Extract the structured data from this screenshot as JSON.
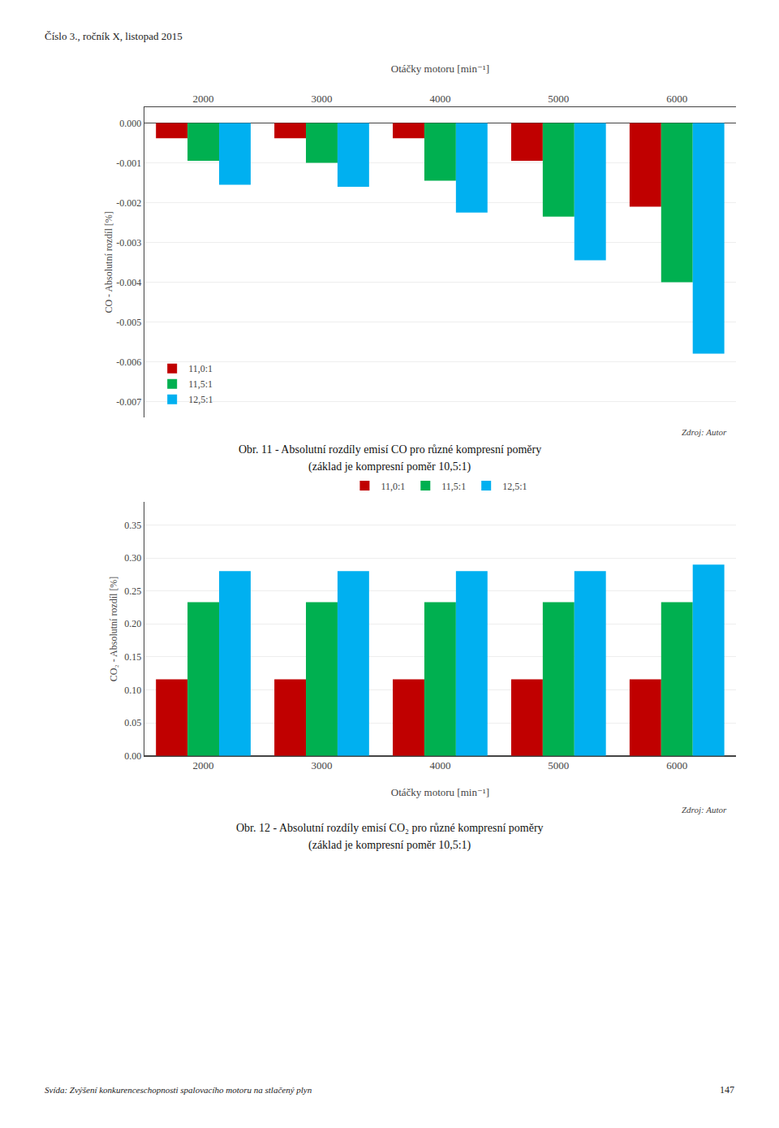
{
  "header": "Číslo 3., ročník X, listopad 2015",
  "footer": "Svída: Zvýšení konkurenceschopnosti spalovacího motoru na stlačený plyn",
  "page": 147,
  "chart_data": [
    {
      "type": "bar",
      "title": "Obr. 11 - Absolutní rozdíly emisí CO pro různé kompresní poměry",
      "subtitle": "(základ je kompresní poměr 10,5:1)",
      "annotations": [
        "Zdroj: Autor"
      ],
      "xlabel": "Otáčky motoru [min⁻¹]",
      "ylabel": "CO - Absolutní rozdíl [%]",
      "categories": [
        "2000",
        "3000",
        "4000",
        "5000",
        "6000"
      ],
      "series": [
        {
          "name": "11,0:1",
          "color": "#c00000",
          "values": [
            -0.00038,
            -0.00038,
            -0.00038,
            -0.00095,
            -0.0021
          ]
        },
        {
          "name": "11,5:1",
          "color": "#00b050",
          "values": [
            -0.00095,
            -0.001,
            -0.00145,
            -0.00235,
            -0.004
          ]
        },
        {
          "name": "12,5:1",
          "color": "#00b0f0",
          "values": [
            -0.00155,
            -0.0016,
            -0.00225,
            -0.00345,
            -0.0058
          ]
        }
      ],
      "ylim": [
        -0.0074,
        0.0004
      ],
      "yticks": [
        {
          "value": 0,
          "label": "0.000"
        },
        -0.001,
        -0.002,
        -0.003,
        -0.004,
        -0.005,
        -0.006,
        -0.007
      ],
      "grid": true,
      "legend": "lower left"
    },
    {
      "type": "bar",
      "title": "Obr. 12 - Absolutní rozdíly emisí CO₂ pro různé kompresní poměry",
      "subtitle": "(základ je kompresní poměr 10,5:1)",
      "annotations": [
        "Zdroj: Autor"
      ],
      "xlabel": "Otáčky motoru [min⁻¹]",
      "ylabel": "CO₂ - Absolutní rozdíl [%]",
      "categories": [
        "2000",
        "3000",
        "4000",
        "5000",
        "6000"
      ],
      "series": [
        {
          "name": "11,0:1",
          "color": "#c00000",
          "values": [
            0.116,
            0.116,
            0.116,
            0.116,
            0.116
          ]
        },
        {
          "name": "11,5:1",
          "color": "#00b050",
          "values": [
            0.233,
            0.233,
            0.233,
            0.233,
            0.233
          ]
        },
        {
          "name": "12,5:1",
          "color": "#00b0f0",
          "values": [
            0.28,
            0.28,
            0.28,
            0.28,
            0.29
          ]
        }
      ],
      "ylim": [
        0.0,
        0.385
      ],
      "yticks": [
        {
          "value": 0,
          "label": "0.00"
        },
        0.05,
        {
          "value": 0.1,
          "label": "0.10"
        },
        0.15,
        {
          "value": 0.2,
          "label": "0.20"
        },
        0.25,
        {
          "value": 0.3,
          "label": "0.30"
        },
        0.35
      ],
      "grid": true,
      "legend": "upper center"
    }
  ]
}
